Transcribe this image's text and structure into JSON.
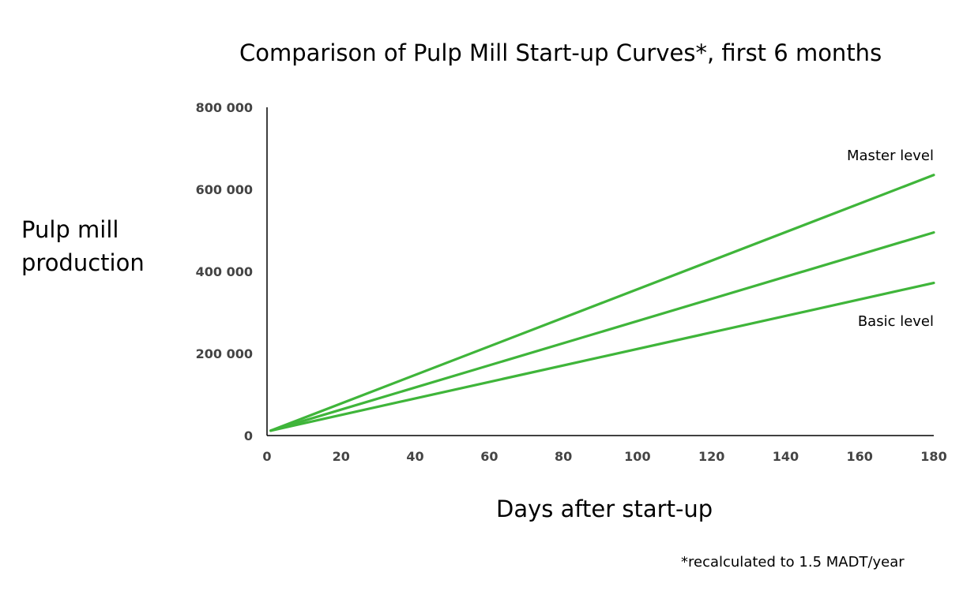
{
  "chart_data": {
    "type": "line",
    "title": "Comparison of Pulp Mill Start-up Curves*, first 6 months",
    "ylabel_lines": [
      "Pulp mill",
      "production"
    ],
    "xlabel": "Days after start-up",
    "footnote": "*recalculated to 1.5 MADT/year",
    "xlim": [
      0,
      180
    ],
    "ylim": [
      0,
      800000
    ],
    "x_ticks": [
      0,
      20,
      40,
      60,
      80,
      100,
      120,
      140,
      160,
      180
    ],
    "y_ticks": [
      0,
      200000,
      400000,
      600000,
      800000
    ],
    "y_tick_labels": [
      "0",
      "200 000",
      "400 000",
      "600 000",
      "800 000"
    ],
    "x_tick_labels": [
      "0",
      "20",
      "40",
      "60",
      "80",
      "100",
      "120",
      "140",
      "160",
      "180"
    ],
    "grid": false,
    "line_color": "#3fb53a",
    "series": [
      {
        "name": "Master level",
        "x": [
          1,
          180
        ],
        "y": [
          12000,
          635000
        ]
      },
      {
        "x": [
          1,
          180
        ],
        "y": [
          12000,
          495000
        ]
      },
      {
        "name": "Basic level",
        "x": [
          1,
          180
        ],
        "y": [
          12000,
          372000
        ]
      }
    ]
  }
}
